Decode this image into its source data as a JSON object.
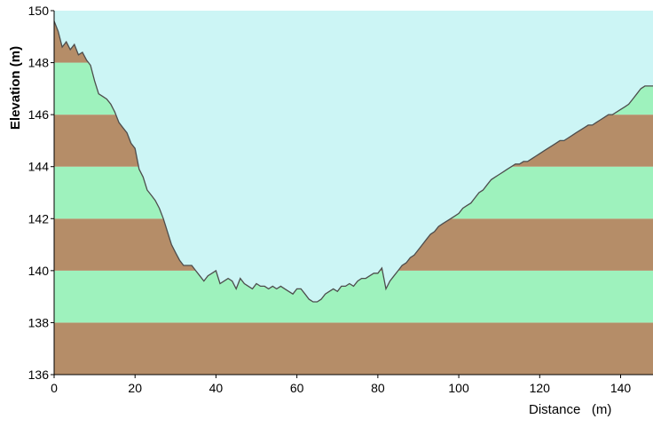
{
  "chart_data": {
    "type": "area",
    "title": "",
    "xlabel": "Distance   (m)",
    "ylabel": "Elevation (m)",
    "xlim": [
      0,
      148
    ],
    "ylim": [
      136,
      150
    ],
    "xticks": [
      0,
      20,
      40,
      60,
      80,
      100,
      120,
      140
    ],
    "yticks": [
      136,
      138,
      140,
      142,
      144,
      146,
      148,
      150
    ],
    "band_height": 2,
    "colors": {
      "sky": "#ccf5f5",
      "band_dark": "#b58d68",
      "band_light": "#9ef2bd",
      "profile_line": "#4d4d4d"
    },
    "series": [
      {
        "x": [
          0,
          1,
          2,
          3,
          4,
          5,
          6,
          7,
          8,
          9,
          10,
          11,
          12,
          13,
          14,
          15,
          16,
          17,
          18,
          19,
          20,
          21,
          22,
          23,
          24,
          25,
          26,
          27,
          28,
          29,
          30,
          31,
          32,
          33,
          34,
          35,
          36,
          37,
          38,
          39,
          40,
          41,
          42,
          43,
          44,
          45,
          46,
          47,
          48,
          49,
          50,
          51,
          52,
          53,
          54,
          55,
          56,
          57,
          58,
          59,
          60,
          61,
          62,
          63,
          64,
          65,
          66,
          67,
          68,
          69,
          70,
          71,
          72,
          73,
          74,
          75,
          76,
          77,
          78,
          79,
          80,
          81,
          82,
          83,
          84,
          85,
          86,
          87,
          88,
          89,
          90,
          91,
          92,
          93,
          94,
          95,
          96,
          97,
          98,
          99,
          100,
          101,
          102,
          103,
          104,
          105,
          106,
          107,
          108,
          109,
          110,
          111,
          112,
          113,
          114,
          115,
          116,
          117,
          118,
          119,
          120,
          121,
          122,
          123,
          124,
          125,
          126,
          127,
          128,
          129,
          130,
          131,
          132,
          133,
          134,
          135,
          136,
          137,
          138,
          139,
          140,
          141,
          142,
          143,
          144,
          145,
          146,
          147,
          148
        ],
        "y": [
          149.6,
          149.2,
          148.6,
          148.8,
          148.5,
          148.7,
          148.3,
          148.4,
          148.1,
          147.9,
          147.3,
          146.8,
          146.7,
          146.6,
          146.4,
          146.1,
          145.7,
          145.5,
          145.3,
          144.9,
          144.7,
          143.9,
          143.6,
          143.1,
          142.9,
          142.7,
          142.4,
          142.0,
          141.5,
          141.0,
          140.7,
          140.4,
          140.2,
          140.2,
          140.2,
          140.0,
          139.8,
          139.6,
          139.8,
          139.9,
          140.0,
          139.5,
          139.6,
          139.7,
          139.6,
          139.3,
          139.7,
          139.5,
          139.4,
          139.3,
          139.5,
          139.4,
          139.4,
          139.3,
          139.4,
          139.3,
          139.4,
          139.3,
          139.2,
          139.1,
          139.3,
          139.3,
          139.1,
          138.9,
          138.8,
          138.8,
          138.9,
          139.1,
          139.2,
          139.3,
          139.2,
          139.4,
          139.4,
          139.5,
          139.4,
          139.6,
          139.7,
          139.7,
          139.8,
          139.9,
          139.9,
          140.1,
          139.3,
          139.6,
          139.8,
          140.0,
          140.2,
          140.3,
          140.5,
          140.6,
          140.8,
          141.0,
          141.2,
          141.4,
          141.5,
          141.7,
          141.8,
          141.9,
          142.0,
          142.1,
          142.2,
          142.4,
          142.5,
          142.6,
          142.8,
          143.0,
          143.1,
          143.3,
          143.5,
          143.6,
          143.7,
          143.8,
          143.9,
          144.0,
          144.1,
          144.1,
          144.2,
          144.2,
          144.3,
          144.4,
          144.5,
          144.6,
          144.7,
          144.8,
          144.9,
          145.0,
          145.0,
          145.1,
          145.2,
          145.3,
          145.4,
          145.5,
          145.6,
          145.6,
          145.7,
          145.8,
          145.9,
          146.0,
          146.0,
          146.1,
          146.2,
          146.3,
          146.4,
          146.6,
          146.8,
          147.0,
          147.1,
          147.1,
          147.1
        ]
      }
    ]
  }
}
